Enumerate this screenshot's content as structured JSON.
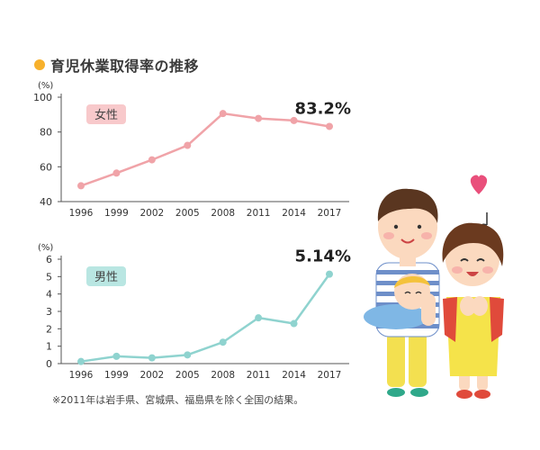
{
  "title": "育児休業取得率の推移",
  "note": "※2011年は岩手県、宮城県、福島県を除く全国の結果。",
  "colors": {
    "title_dot": "#f7b12c",
    "female_line": "#f0a3a8",
    "female_label_bg": "#f8c9cb",
    "male_line": "#8fd3cf",
    "male_label_bg": "#b9e6e2",
    "axis": "#555555"
  },
  "chart_data": [
    {
      "type": "line",
      "title": "女性",
      "unit_label": "(%)",
      "x": [
        "1996",
        "1999",
        "2002",
        "2005",
        "2008",
        "2011",
        "2014",
        "2017"
      ],
      "series": [
        {
          "name": "女性",
          "values": [
            49.1,
            56.4,
            64.0,
            72.3,
            90.6,
            87.8,
            86.6,
            83.2
          ]
        }
      ],
      "ylim": [
        40,
        100
      ],
      "yticks": [
        40,
        60,
        80,
        100
      ],
      "highlight_label": "83.2%",
      "grid": false
    },
    {
      "type": "line",
      "title": "男性",
      "unit_label": "(%)",
      "x": [
        "1996",
        "1999",
        "2002",
        "2005",
        "2008",
        "2011",
        "2014",
        "2017"
      ],
      "series": [
        {
          "name": "男性",
          "values": [
            0.12,
            0.42,
            0.33,
            0.5,
            1.23,
            2.63,
            2.3,
            5.14
          ]
        }
      ],
      "ylim": [
        0,
        6
      ],
      "yticks": [
        0,
        1,
        2,
        3,
        4,
        5,
        6
      ],
      "highlight_label": "5.14%",
      "grid": false
    }
  ]
}
